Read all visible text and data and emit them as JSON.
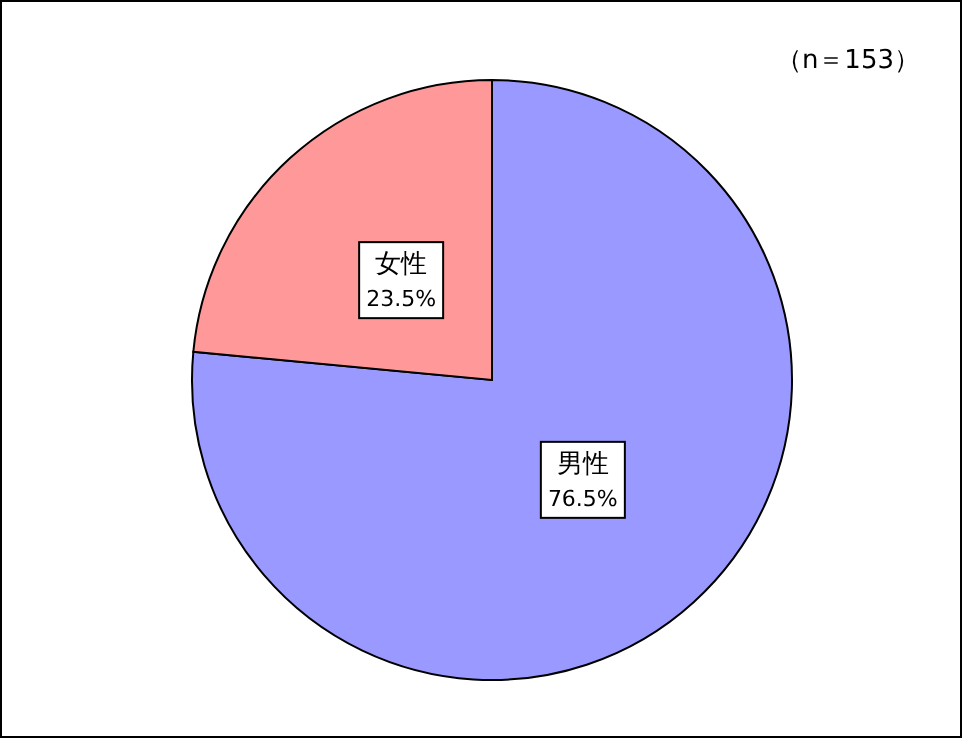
{
  "chart_data": {
    "type": "pie",
    "categories": [
      "男性",
      "女性"
    ],
    "values": [
      76.5,
      23.5
    ],
    "colors": [
      "#9999ff",
      "#ff9999"
    ],
    "value_labels": [
      "76.5%",
      "23.5%"
    ],
    "annotations": [
      "（n＝153）"
    ]
  }
}
